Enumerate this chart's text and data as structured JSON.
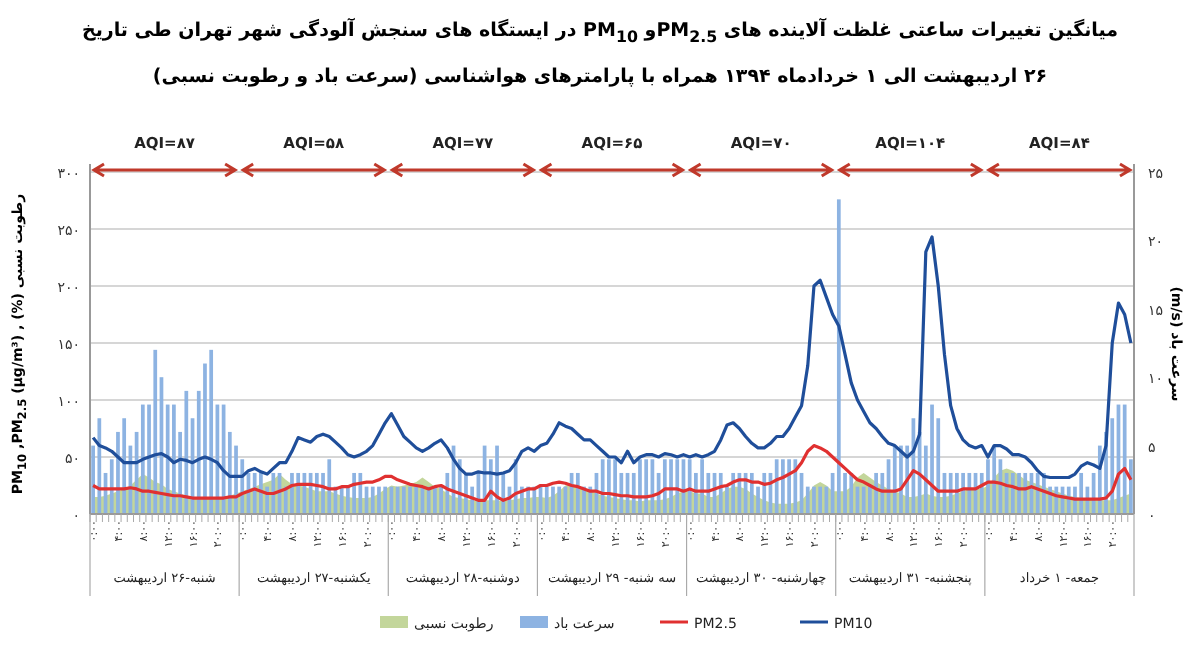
{
  "chart_data": {
    "type": "line",
    "title": "میانگین تغییرات ساعتی غلظت آلاینده های PM$_{2.5}$و PM$_{10}$ در ایستگاه های سنجش آلودگی شهر تهران طی تاریخ ۲۶ اردیبهشت الی ۱ خردادماه ۱۳۹۴ همراه با پارامترهای هواشناسی (سرعت باد و رطوبت نسبی)",
    "ylabel": "PM$_{10}$ ,PM$_{2.5}$ (µg/m³) , (%) رطوبت نسبی",
    "y2label": "سرعت باد (m/s)",
    "categories": [
      "۰:۰۰",
      null,
      null,
      null,
      "۴:۰۰",
      null,
      null,
      null,
      "۸:۰۰",
      null,
      null,
      null,
      "۱۲:۰۰",
      null,
      null,
      null,
      "۱۶:۰۰",
      null,
      null,
      null,
      "۲۰:۰۰",
      null,
      null,
      null,
      "۰:۰۰",
      null,
      null,
      null,
      "۴:۰۰",
      null,
      null,
      null,
      "۸:۰۰",
      null,
      null,
      null,
      "۱۲:۰۰",
      null,
      null,
      null,
      "۱۶:۰۰",
      null,
      null,
      null,
      "۲۰:۰۰",
      null,
      null,
      null,
      "۰:۰۰",
      null,
      null,
      null,
      "۴:۰۰",
      null,
      null,
      null,
      "۸:۰۰",
      null,
      null,
      null,
      "۱۲:۰۰",
      null,
      null,
      null,
      "۱۶:۰۰",
      null,
      null,
      null,
      "۲۰:۰۰",
      null,
      null,
      null,
      "۰:۰۰",
      null,
      null,
      null,
      "۴:۰۰",
      null,
      null,
      null,
      "۸:۰۰",
      null,
      null,
      null,
      "۱۲:۰۰",
      null,
      null,
      null,
      "۱۶:۰۰",
      null,
      null,
      null,
      "۲۰:۰۰",
      null,
      null,
      null,
      "۰:۰۰",
      null,
      null,
      null,
      "۴:۰۰",
      null,
      null,
      null,
      "۸:۰۰",
      null,
      null,
      null,
      "۱۲:۰۰",
      null,
      null,
      null,
      "۱۶:۰۰",
      null,
      null,
      null,
      "۲۰:۰۰",
      null,
      null,
      null,
      "۰:۰۰",
      null,
      null,
      null,
      "۴:۰۰",
      null,
      null,
      null,
      "۸:۰۰",
      null,
      null,
      null,
      "۱۲:۰۰",
      null,
      null,
      null,
      "۱۶:۰۰",
      null,
      null,
      null,
      "۲۰:۰۰",
      null,
      null,
      null,
      "۰:۰۰",
      null,
      null,
      null,
      "۴:۰۰",
      null,
      null,
      null,
      "۸:۰۰",
      null,
      null,
      null,
      "۱۲:۰۰",
      null,
      null,
      null,
      "۱۶:۰۰",
      null,
      null,
      null,
      "۲۰:۰۰",
      null,
      null,
      null
    ],
    "ylim": [
      0,
      300
    ],
    "yticks": [
      {
        "value": 0,
        "label": "۰"
      },
      {
        "value": 50,
        "label": "۵۰"
      },
      {
        "value": 100,
        "label": "۱۰۰"
      },
      {
        "value": 150,
        "label": "۱۵۰"
      },
      {
        "value": 200,
        "label": "۲۰۰"
      },
      {
        "value": 250,
        "label": "۲۵۰"
      },
      {
        "value": 300,
        "label": "۳۰۰"
      }
    ],
    "y2lim": [
      0,
      25
    ],
    "y2ticks": [
      {
        "value": 0,
        "label": "۰"
      },
      {
        "value": 5,
        "label": "۵"
      },
      {
        "value": 10,
        "label": "۱۰"
      },
      {
        "value": 15,
        "label": "۱۵"
      },
      {
        "value": 20,
        "label": "۲۰"
      },
      {
        "value": 25,
        "label": "۲۵"
      }
    ],
    "grid": "y",
    "legend": "bottom",
    "annotations": [
      "AQI=۸۷",
      "AQI=۵۸",
      "AQI=۷۷",
      "AQI=۶۵",
      "AQI=۷۰",
      "AQI=۱۰۴",
      "AQI=۸۴",
      "شنبه-۲۶ اردیبهشت",
      "یکشنبه-۲۷ اردیبهشت",
      "دوشنبه-۲۸ اردیبهشت",
      "سه شنبه- ۲۹ اردیبهشت",
      "چهارشنبه- ۳۰ اردیبهشت",
      "پنجشنبه- ۳۱ اردیبهشت",
      "جمعه- ۱ خرداد"
    ],
    "series": [
      {
        "name": "رطوبت نسبی",
        "type": "area",
        "color": "#c3d69b",
        "values": [
          15,
          15,
          16,
          18,
          20,
          22,
          25,
          30,
          35,
          32,
          28,
          26,
          22,
          20,
          18,
          16,
          15,
          14,
          14,
          14,
          14,
          14,
          16,
          18,
          20,
          22,
          24,
          26,
          28,
          30,
          35,
          30,
          26,
          25,
          24,
          22,
          20,
          20,
          20,
          18,
          16,
          15,
          14,
          14,
          14,
          15,
          18,
          22,
          25,
          24,
          25,
          26,
          28,
          32,
          28,
          24,
          22,
          18,
          15,
          14,
          13,
          12,
          11,
          12,
          12,
          12,
          11,
          12,
          13,
          14,
          14,
          15,
          15,
          14,
          16,
          20,
          25,
          26,
          25,
          22,
          20,
          18,
          16,
          15,
          14,
          13,
          12,
          12,
          11,
          12,
          12,
          12,
          13,
          15,
          18,
          20,
          20,
          18,
          18,
          15,
          15,
          18,
          22,
          24,
          24,
          22,
          18,
          15,
          12,
          10,
          9,
          9,
          9,
          10,
          12,
          18,
          25,
          28,
          25,
          20,
          20,
          20,
          24,
          32,
          36,
          32,
          28,
          25,
          22,
          20,
          18,
          15,
          15,
          16,
          18,
          16,
          15,
          15,
          16,
          18,
          20,
          22,
          22,
          22,
          25,
          32,
          38,
          40,
          38,
          34,
          30,
          28,
          26,
          24,
          22,
          20,
          18,
          16,
          15,
          14,
          13,
          12,
          12,
          12,
          12,
          14,
          16,
          18
        ]
      },
      {
        "name": "سرعت باد",
        "type": "bar",
        "axis": "y2",
        "color": "#8db3e2",
        "values": [
          5,
          7,
          3,
          4,
          6,
          7,
          5,
          6,
          8,
          8,
          12,
          10,
          8,
          8,
          6,
          9,
          7,
          9,
          11,
          12,
          8,
          8,
          6,
          5,
          4,
          3,
          3,
          3,
          2,
          3,
          3,
          2,
          3,
          3,
          3,
          3,
          3,
          3,
          4,
          2,
          2,
          2,
          3,
          3,
          2,
          2,
          2,
          2,
          2,
          2,
          2,
          2,
          2,
          2,
          2,
          2,
          2,
          3,
          5,
          4,
          3,
          2,
          3,
          5,
          4,
          5,
          3,
          2,
          4,
          2,
          2,
          2,
          2,
          2,
          2,
          2,
          2,
          3,
          3,
          2,
          2,
          3,
          4,
          4,
          4,
          3,
          3,
          3,
          4,
          4,
          4,
          3,
          4,
          4,
          4,
          4,
          4,
          3,
          4,
          3,
          3,
          3,
          2,
          3,
          3,
          3,
          3,
          2,
          3,
          3,
          4,
          4,
          4,
          4,
          3,
          2,
          2,
          2,
          2,
          3,
          23,
          3,
          3,
          2,
          2,
          2,
          3,
          3,
          4,
          5,
          5,
          5,
          7,
          6,
          5,
          8,
          7,
          3,
          3,
          3,
          3,
          3,
          3,
          3,
          4,
          5,
          4,
          3,
          3,
          3,
          3,
          3,
          3,
          3,
          2,
          2,
          2,
          2,
          2,
          3,
          2,
          3,
          5,
          6,
          7,
          8,
          8,
          4
        ]
      },
      {
        "name": "PM2.5",
        "color": "#e03030",
        "values": [
          25,
          22,
          22,
          22,
          22,
          22,
          23,
          22,
          20,
          20,
          19,
          18,
          17,
          16,
          16,
          15,
          14,
          14,
          14,
          14,
          14,
          14,
          15,
          15,
          18,
          20,
          22,
          20,
          18,
          18,
          20,
          22,
          25,
          26,
          26,
          26,
          25,
          24,
          22,
          22,
          24,
          24,
          26,
          27,
          28,
          28,
          30,
          33,
          33,
          30,
          28,
          26,
          25,
          24,
          22,
          24,
          25,
          22,
          20,
          18,
          16,
          14,
          12,
          12,
          20,
          15,
          12,
          14,
          18,
          20,
          22,
          22,
          25,
          25,
          27,
          28,
          27,
          25,
          24,
          22,
          20,
          20,
          18,
          18,
          17,
          16,
          16,
          15,
          15,
          15,
          16,
          18,
          22,
          22,
          22,
          20,
          22,
          20,
          20,
          20,
          22,
          24,
          25,
          28,
          30,
          30,
          28,
          28,
          26,
          27,
          30,
          32,
          35,
          38,
          45,
          55,
          60,
          58,
          55,
          50,
          45,
          40,
          35,
          30,
          28,
          25,
          22,
          20,
          20,
          20,
          22,
          30,
          38,
          35,
          30,
          25,
          20,
          20,
          20,
          20,
          22,
          22,
          22,
          25,
          28,
          28,
          27,
          25,
          24,
          22,
          22,
          24,
          22,
          20,
          18,
          16,
          15,
          14,
          13,
          13,
          13,
          13,
          13,
          14,
          20,
          35,
          40,
          30
        ]
      },
      {
        "name": "PM10",
        "color": "#1f4e9a",
        "values": [
          67,
          60,
          58,
          55,
          50,
          45,
          45,
          45,
          48,
          50,
          52,
          53,
          50,
          45,
          48,
          47,
          45,
          48,
          50,
          48,
          45,
          38,
          33,
          33,
          33,
          38,
          40,
          37,
          35,
          40,
          45,
          45,
          55,
          67,
          65,
          63,
          68,
          70,
          68,
          63,
          58,
          52,
          50,
          52,
          55,
          60,
          70,
          80,
          88,
          78,
          68,
          63,
          58,
          55,
          58,
          62,
          65,
          58,
          48,
          40,
          35,
          35,
          37,
          36,
          36,
          35,
          36,
          38,
          45,
          55,
          58,
          55,
          60,
          62,
          70,
          80,
          77,
          75,
          70,
          65,
          65,
          60,
          55,
          50,
          50,
          45,
          55,
          45,
          50,
          52,
          52,
          50,
          53,
          52,
          50,
          52,
          50,
          52,
          50,
          52,
          55,
          65,
          78,
          80,
          75,
          68,
          62,
          58,
          58,
          62,
          68,
          68,
          75,
          85,
          95,
          130,
          200,
          205,
          190,
          175,
          165,
          140,
          115,
          100,
          90,
          80,
          75,
          68,
          62,
          60,
          55,
          50,
          55,
          70,
          230,
          243,
          200,
          140,
          95,
          75,
          65,
          60,
          58,
          60,
          50,
          60,
          60,
          57,
          52,
          52,
          50,
          45,
          38,
          33,
          32,
          32,
          32,
          32,
          35,
          42,
          45,
          43,
          40,
          60,
          150,
          185,
          175,
          150
        ]
      }
    ]
  }
}
